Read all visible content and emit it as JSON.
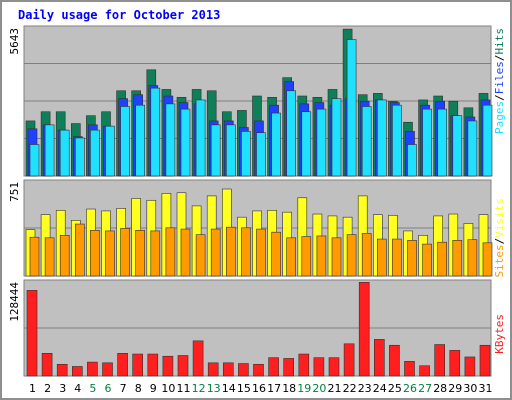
{
  "title": "Daily usage for October 2013",
  "colors": {
    "hits": "#0f7f5a",
    "files": "#2040ff",
    "pages": "#20e0ff",
    "visits": "#ffff20",
    "sites": "#ff9a00",
    "kbytes": "#ff1f1f",
    "weekend_label": "#007f40",
    "weekday_label": "#000000",
    "panel_bg": "#c0c0c0",
    "title": "#0000ff"
  },
  "chart_data": [
    {
      "type": "bar",
      "name": "pages-files-hits",
      "ymax_label": "5643",
      "ylim": [
        0,
        5643
      ],
      "legend": [
        "Pages",
        "/",
        "Files",
        "/",
        "Hits"
      ],
      "legend_colors": [
        "#20e0ff",
        "#000000",
        "#2040ff",
        "#000000",
        "#0f7f5a"
      ],
      "categories": [
        "1",
        "2",
        "3",
        "4",
        "5",
        "6",
        "7",
        "8",
        "9",
        "10",
        "11",
        "12",
        "13",
        "14",
        "15",
        "16",
        "17",
        "18",
        "19",
        "20",
        "21",
        "22",
        "23",
        "24",
        "25",
        "26",
        "27",
        "28",
        "29",
        "30",
        "31"
      ],
      "series": [
        {
          "name": "Hits",
          "values": [
            2100,
            2450,
            2450,
            2000,
            2300,
            2450,
            3250,
            3250,
            4050,
            3300,
            3000,
            3300,
            3250,
            2450,
            2500,
            3050,
            3000,
            3750,
            3050,
            3000,
            3300,
            5600,
            3100,
            3150,
            2850,
            2050,
            2900,
            3050,
            2850,
            2600,
            3150
          ]
        },
        {
          "name": "Files",
          "values": [
            1800,
            1950,
            1750,
            1500,
            1950,
            1900,
            2950,
            3100,
            3450,
            3050,
            2800,
            2750,
            2100,
            2100,
            1850,
            2100,
            2700,
            3600,
            2750,
            2800,
            2700,
            2950,
            2850,
            2900,
            2800,
            1700,
            2700,
            2850,
            2300,
            2250,
            2900
          ]
        },
        {
          "name": "Pages",
          "values": [
            1200,
            1950,
            1750,
            1450,
            1750,
            1900,
            2650,
            2700,
            3350,
            2750,
            2550,
            2900,
            1950,
            1950,
            1700,
            1650,
            2400,
            3250,
            2450,
            2550,
            2950,
            5200,
            2650,
            2900,
            2700,
            1200,
            2550,
            2550,
            2300,
            2100,
            2700
          ]
        }
      ]
    },
    {
      "type": "bar",
      "name": "visits-sites",
      "ymax_label": "751",
      "ylim": [
        0,
        751
      ],
      "legend": [
        "Sites",
        "/",
        "Visits"
      ],
      "legend_colors": [
        "#ff9a00",
        "#000000",
        "#ffff20"
      ],
      "categories": [
        "1",
        "2",
        "3",
        "4",
        "5",
        "6",
        "7",
        "8",
        "9",
        "10",
        "11",
        "12",
        "13",
        "14",
        "15",
        "16",
        "17",
        "18",
        "19",
        "20",
        "21",
        "22",
        "23",
        "24",
        "25",
        "26",
        "27",
        "28",
        "29",
        "30",
        "31"
      ],
      "series": [
        {
          "name": "Visits",
          "values": [
            370,
            490,
            525,
            445,
            535,
            520,
            540,
            620,
            605,
            660,
            665,
            560,
            640,
            695,
            470,
            520,
            525,
            510,
            625,
            495,
            480,
            470,
            640,
            490,
            485,
            360,
            325,
            480,
            495,
            420,
            490
          ]
        },
        {
          "name": "Sites",
          "values": [
            310,
            305,
            325,
            415,
            365,
            360,
            380,
            365,
            360,
            385,
            375,
            330,
            375,
            390,
            385,
            375,
            350,
            305,
            315,
            320,
            305,
            330,
            340,
            295,
            295,
            285,
            255,
            270,
            285,
            290,
            265
          ]
        }
      ]
    },
    {
      "type": "bar",
      "name": "kbytes",
      "ymax_label": "128444",
      "ylim": [
        0,
        128444
      ],
      "legend": [
        "KBytes"
      ],
      "legend_colors": [
        "#ff1f1f"
      ],
      "categories": [
        "1",
        "2",
        "3",
        "4",
        "5",
        "6",
        "7",
        "8",
        "9",
        "10",
        "11",
        "12",
        "13",
        "14",
        "15",
        "16",
        "17",
        "18",
        "19",
        "20",
        "21",
        "22",
        "23",
        "24",
        "25",
        "26",
        "27",
        "28",
        "29",
        "30",
        "31"
      ],
      "series": [
        {
          "name": "KBytes",
          "values": [
            117000,
            31000,
            16000,
            13000,
            19000,
            18000,
            31000,
            30000,
            30000,
            27000,
            28000,
            48000,
            18000,
            18000,
            17000,
            16000,
            25000,
            24000,
            30000,
            25000,
            25000,
            44000,
            128000,
            50000,
            42000,
            20000,
            14000,
            43000,
            35000,
            26000,
            42000
          ]
        }
      ]
    }
  ],
  "x_labels": {
    "days": [
      "1",
      "2",
      "3",
      "4",
      "5",
      "6",
      "7",
      "8",
      "9",
      "10",
      "11",
      "12",
      "13",
      "14",
      "15",
      "16",
      "17",
      "18",
      "19",
      "20",
      "21",
      "22",
      "23",
      "24",
      "25",
      "26",
      "27",
      "28",
      "29",
      "30",
      "31"
    ],
    "weekend_days": [
      "5",
      "6",
      "12",
      "13",
      "19",
      "20",
      "26",
      "27"
    ]
  }
}
